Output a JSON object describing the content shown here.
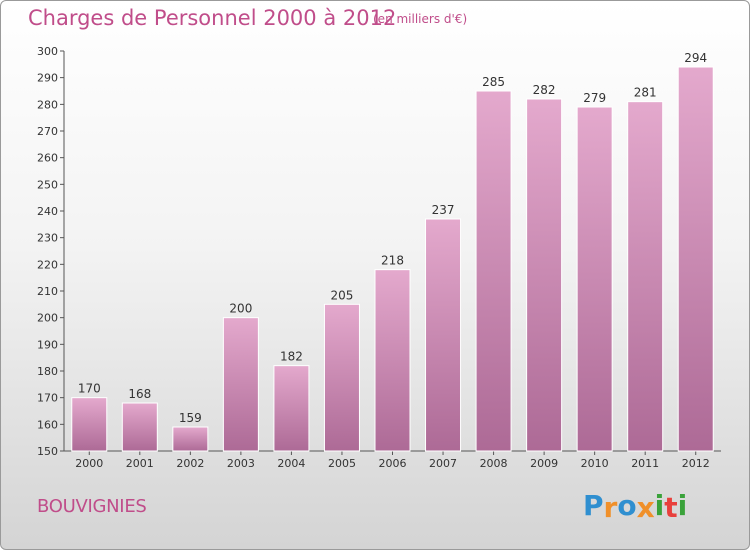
{
  "header": {
    "title": "Charges de Personnel 2000 à 2012",
    "subtitle": "(en milliers d'€)"
  },
  "footer": {
    "place": "BOUVIGNIES",
    "logo_letters": [
      "P",
      "r",
      "o",
      "x",
      "i",
      "t",
      "i"
    ],
    "logo_colors": [
      "#2f8fd0",
      "#f0902a",
      "#2f8fd0",
      "#f0902a",
      "#3aa23a",
      "#e8403c",
      "#3aa23a"
    ]
  },
  "colors": {
    "accent": "#c04d8a",
    "bar_top": "#e4a9cd",
    "bar_bottom": "#ad6a96"
  },
  "chart_data": {
    "type": "bar",
    "categories": [
      "2000",
      "2001",
      "2002",
      "2003",
      "2004",
      "2005",
      "2006",
      "2007",
      "2008",
      "2009",
      "2010",
      "2011",
      "2012"
    ],
    "values": [
      170,
      168,
      159,
      200,
      182,
      205,
      218,
      237,
      285,
      282,
      279,
      281,
      294
    ],
    "ylim": [
      150,
      300
    ],
    "yticks": [
      150,
      160,
      170,
      180,
      190,
      200,
      210,
      220,
      230,
      240,
      250,
      260,
      270,
      280,
      290,
      300
    ],
    "grid": false,
    "data_labels": true
  }
}
